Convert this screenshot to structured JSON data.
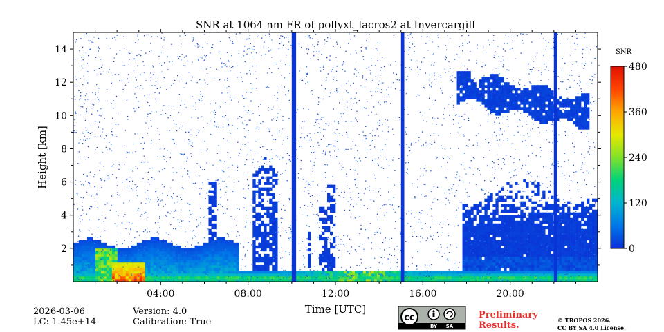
{
  "chart_data": {
    "type": "heatmap",
    "title": "SNR at 1064 nm FR of pollyxt_lacros2 at Invercargill",
    "xlabel": "Time [UTC]",
    "ylabel": "Height [km]",
    "xlim": [
      0,
      24
    ],
    "ylim": [
      0,
      15
    ],
    "x_ticks": [
      {
        "value": 4,
        "label": "04:00"
      },
      {
        "value": 8,
        "label": "08:00"
      },
      {
        "value": 12,
        "label": "12:00"
      },
      {
        "value": 16,
        "label": "16:00"
      },
      {
        "value": 20,
        "label": "20:00"
      }
    ],
    "y_ticks": [
      {
        "value": 2,
        "label": "2"
      },
      {
        "value": 4,
        "label": "4"
      },
      {
        "value": 6,
        "label": "6"
      },
      {
        "value": 8,
        "label": "8"
      },
      {
        "value": 10,
        "label": "10"
      },
      {
        "value": 12,
        "label": "12"
      },
      {
        "value": 14,
        "label": "14"
      }
    ],
    "colorbar": {
      "label": "SNR",
      "range": [
        0,
        480
      ],
      "ticks": [
        {
          "value": 0,
          "label": "0"
        },
        {
          "value": 120,
          "label": "120"
        },
        {
          "value": 240,
          "label": "240"
        },
        {
          "value": 360,
          "label": "360"
        },
        {
          "value": 480,
          "label": "480"
        }
      ],
      "colormap": [
        "#0a2fd6",
        "#0077e8",
        "#00b4d0",
        "#00d27a",
        "#80e22a",
        "#e6e800",
        "#ffa600",
        "#ff4400",
        "#e01000"
      ]
    },
    "features": [
      {
        "name": "boundary layer",
        "x_range": [
          0,
          24
        ],
        "y_range": [
          0,
          0.6
        ],
        "snr_approx": 150
      },
      {
        "name": "aerosol layer (morning)",
        "x_range": [
          0,
          7.5
        ],
        "y_range": [
          0,
          2.6
        ],
        "snr_approx": 80
      },
      {
        "name": "strong signal near ground",
        "x_range": [
          1.8,
          3.3
        ],
        "y_range": [
          0,
          1.1
        ],
        "snr_approx": 450
      },
      {
        "name": "convective column",
        "x_range": [
          8.2,
          9.4
        ],
        "y_range": [
          0.5,
          7.5
        ],
        "snr_approx": 10
      },
      {
        "name": "afternoon layer",
        "x_range": [
          17.8,
          24
        ],
        "y_range": [
          0.4,
          6
        ],
        "snr_approx": 10
      },
      {
        "name": "cirrus cloud",
        "x_range": [
          17.5,
          23.5
        ],
        "y_range": [
          9.3,
          12.5
        ],
        "snr_approx": 10
      },
      {
        "name": "vertical stripe",
        "x_range": [
          10,
          10.2
        ],
        "y_range": [
          0,
          15
        ],
        "snr_approx": 5
      },
      {
        "name": "vertical stripe",
        "x_range": [
          15,
          15.15
        ],
        "y_range": [
          0,
          15
        ],
        "snr_approx": 5
      },
      {
        "name": "vertical stripe",
        "x_range": [
          22,
          22.15
        ],
        "y_range": [
          0,
          15
        ],
        "snr_approx": 5
      }
    ]
  },
  "footer": {
    "date": "2026-03-06",
    "lc": "LC: 1.45e+14",
    "version": "Version: 4.0",
    "calibration": "Calibration: True",
    "license_badge": {
      "left": "cc",
      "by": "BY",
      "sa": "SA"
    },
    "preliminary_line1": "Preliminary",
    "preliminary_line2": "Results.",
    "copyright_line1": "© TROPOS 2026.",
    "copyright_line2": "CC BY SA 4.0 License."
  }
}
